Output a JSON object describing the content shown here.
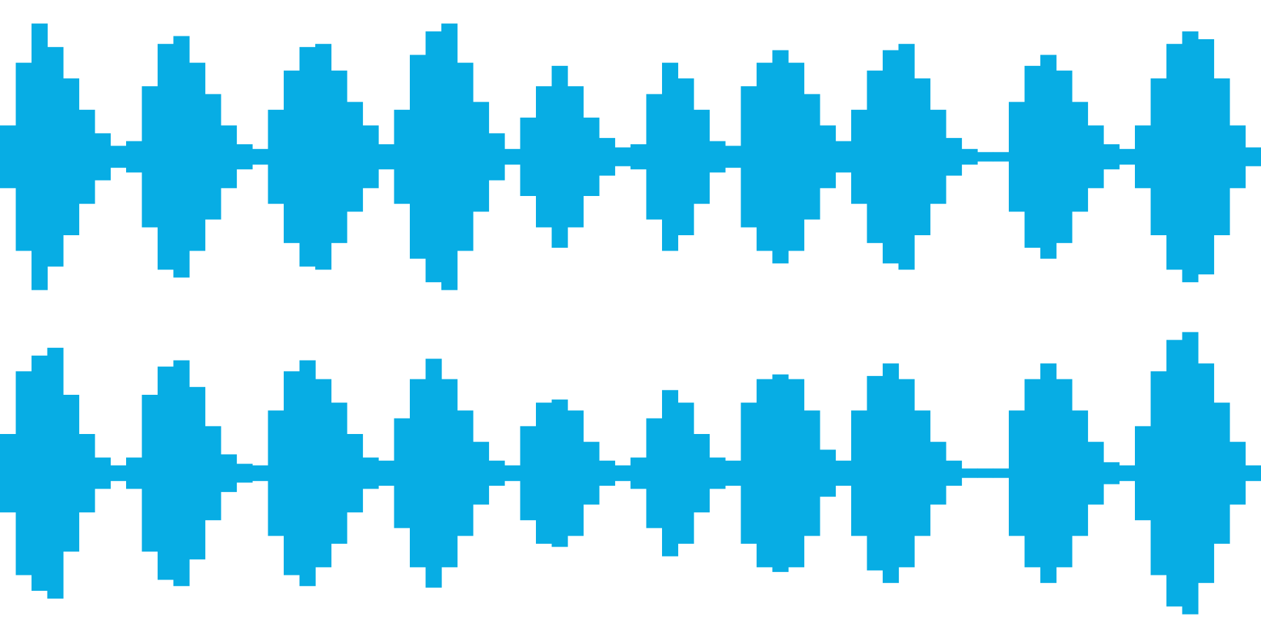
{
  "chart_data": [
    {
      "type": "waveform",
      "color": "#07ade4",
      "ylim": [
        -1,
        1
      ],
      "values": [
        0.2,
        0.6,
        0.85,
        0.7,
        0.5,
        0.3,
        0.15,
        0.07,
        0.1,
        0.45,
        0.72,
        0.77,
        0.6,
        0.4,
        0.2,
        0.08,
        0.05,
        0.3,
        0.55,
        0.7,
        0.72,
        0.55,
        0.35,
        0.2,
        0.08,
        0.3,
        0.65,
        0.8,
        0.85,
        0.6,
        0.35,
        0.15,
        0.05,
        0.25,
        0.45,
        0.58,
        0.45,
        0.25,
        0.12,
        0.06,
        0.08,
        0.4,
        0.6,
        0.5,
        0.3,
        0.1,
        0.07,
        0.45,
        0.6,
        0.68,
        0.6,
        0.4,
        0.2,
        0.1,
        0.3,
        0.55,
        0.68,
        0.72,
        0.5,
        0.3,
        0.12,
        0.05,
        0.03,
        0.03,
        0.35,
        0.58,
        0.65,
        0.55,
        0.35,
        0.2,
        0.08,
        0.05,
        0.2,
        0.5,
        0.72,
        0.8,
        0.75,
        0.5,
        0.2,
        0.06
      ]
    },
    {
      "type": "waveform",
      "color": "#07ade4",
      "ylim": [
        -1,
        1
      ],
      "values": [
        0.25,
        0.65,
        0.75,
        0.8,
        0.5,
        0.25,
        0.1,
        0.05,
        0.1,
        0.5,
        0.68,
        0.72,
        0.55,
        0.3,
        0.12,
        0.06,
        0.05,
        0.4,
        0.65,
        0.72,
        0.6,
        0.45,
        0.25,
        0.1,
        0.08,
        0.35,
        0.6,
        0.73,
        0.6,
        0.4,
        0.2,
        0.08,
        0.05,
        0.3,
        0.45,
        0.47,
        0.4,
        0.2,
        0.08,
        0.05,
        0.1,
        0.35,
        0.53,
        0.45,
        0.25,
        0.1,
        0.08,
        0.45,
        0.6,
        0.63,
        0.6,
        0.4,
        0.15,
        0.08,
        0.4,
        0.62,
        0.7,
        0.6,
        0.4,
        0.2,
        0.08,
        0.03,
        0.03,
        0.03,
        0.4,
        0.6,
        0.7,
        0.6,
        0.4,
        0.2,
        0.07,
        0.05,
        0.3,
        0.65,
        0.85,
        0.9,
        0.7,
        0.45,
        0.2,
        0.05
      ]
    }
  ]
}
